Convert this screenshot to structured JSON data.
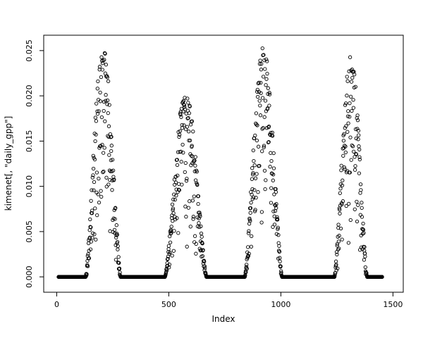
{
  "figure": {
    "background": "#ffffff"
  },
  "chart_data": {
    "type": "scatter",
    "title": "",
    "xlabel": "Index",
    "ylabel": "kimenet[, \"daily_gpp\"]",
    "marker": "open-circle",
    "point_color": "#000000",
    "axis_color": "#000000",
    "grid": false,
    "legend": false,
    "seed": 42,
    "x_axis": {
      "domain": [
        -58,
        1546
      ],
      "ticks": [
        {
          "value": 0,
          "label": "0"
        },
        {
          "value": 500,
          "label": "500"
        },
        {
          "value": 1000,
          "label": "1000"
        },
        {
          "value": 1500,
          "label": "1500"
        }
      ]
    },
    "y_axis": {
      "domain": [
        -0.0017,
        0.0267
      ],
      "ticks": [
        {
          "value": 0.0,
          "label": "0.000"
        },
        {
          "value": 0.005,
          "label": "0.005"
        },
        {
          "value": 0.01,
          "label": "0.010"
        },
        {
          "value": 0.015,
          "label": "0.015"
        },
        {
          "value": 0.02,
          "label": "0.020"
        },
        {
          "value": 0.025,
          "label": "0.025"
        }
      ]
    },
    "zero_runs": [
      [
        8,
        128
      ],
      [
        286,
        482
      ],
      [
        669,
        838
      ],
      [
        1006,
        1238
      ],
      [
        1386,
        1452
      ]
    ],
    "seasons": [
      {
        "start": 129,
        "end": 285,
        "peak": 0.0255
      },
      {
        "start": 483,
        "end": 668,
        "peak": 0.0205
      },
      {
        "start": 839,
        "end": 1005,
        "peak": 0.0255
      },
      {
        "start": 1239,
        "end": 1385,
        "peak": 0.0245
      }
    ],
    "pattern_note": "Daily GPP time series: four seasonal bell-shaped peaks (~0.020-0.026 max) separated by long runs of exact zeros along the baseline."
  }
}
